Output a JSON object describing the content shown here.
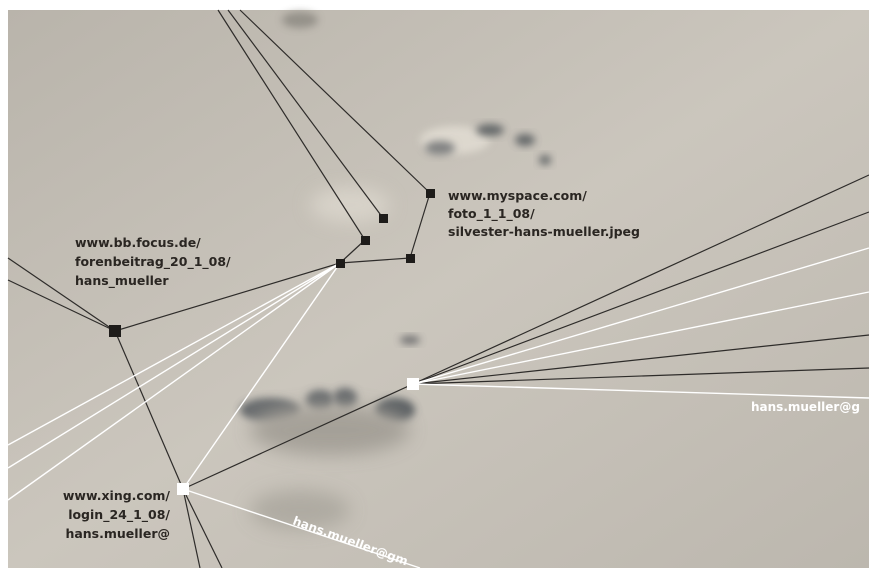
{
  "labels": {
    "myspace": {
      "lines": [
        "www.myspace.com/",
        "foto_1_1_08/",
        "silvester-hans-mueller.jpeg"
      ]
    },
    "focus": {
      "lines": [
        "www.bb.focus.de/",
        "forenbeitrag_20_1_08/",
        "hans_mueller"
      ]
    },
    "xing": {
      "lines": [
        "www.xing.com/",
        "login_24_1_08/",
        "hans.mueller@"
      ]
    },
    "email_right": "hans.mueller@g",
    "email_bottom": "hans.mueller@gm"
  }
}
